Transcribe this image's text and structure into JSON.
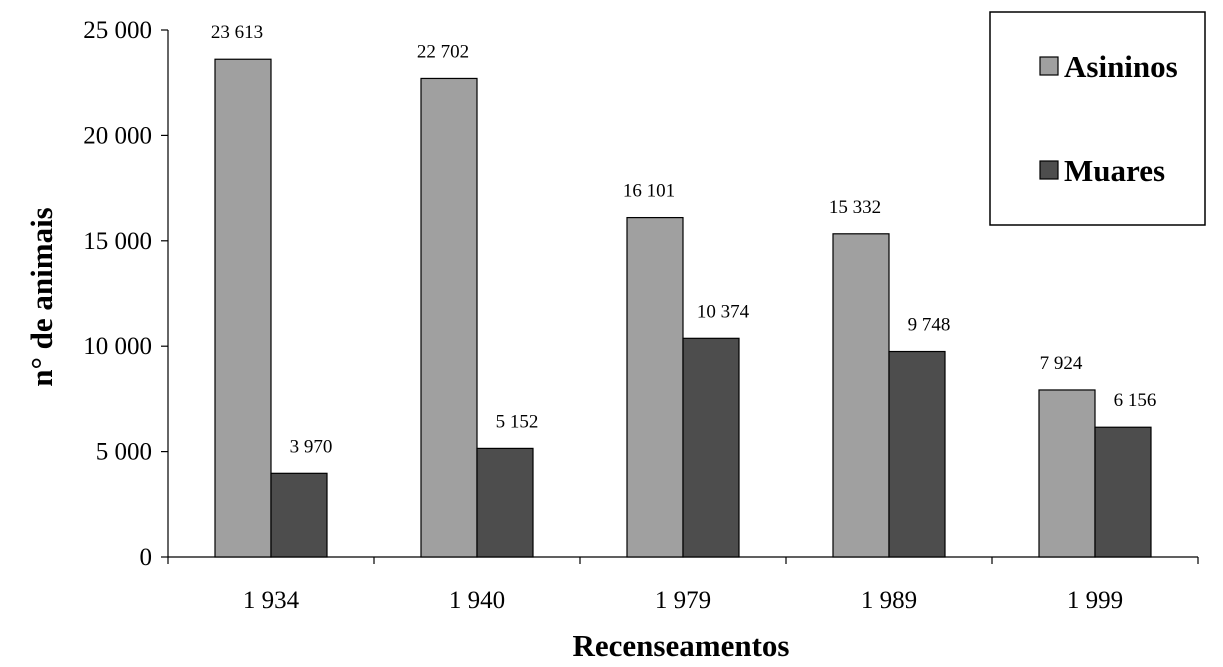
{
  "chart_data": {
    "type": "bar",
    "categories": [
      "1 934",
      "1 940",
      "1 979",
      "1 989",
      "1 999"
    ],
    "series": [
      {
        "name": "Asininos",
        "color": "#a0a0a0",
        "values": [
          23613,
          22702,
          16101,
          15332,
          7924
        ],
        "labels": [
          "23 613",
          "22 702",
          "16 101",
          "15 332",
          "7 924"
        ]
      },
      {
        "name": "Muares",
        "color": "#4d4d4d",
        "values": [
          3970,
          5152,
          10374,
          9748,
          6156
        ],
        "labels": [
          "3 970",
          "5 152",
          "10 374",
          "9 748",
          "6 156"
        ]
      }
    ],
    "xlabel": "Recenseamentos",
    "ylabel": "n° de animais",
    "ylim": [
      0,
      25000
    ],
    "yticks": [
      0,
      5000,
      10000,
      15000,
      20000,
      25000
    ],
    "ytick_labels": [
      "0",
      "5 000",
      "10 000",
      "15 000",
      "20 000",
      "25 000"
    ],
    "grid": false,
    "legend_position": "top-right"
  }
}
